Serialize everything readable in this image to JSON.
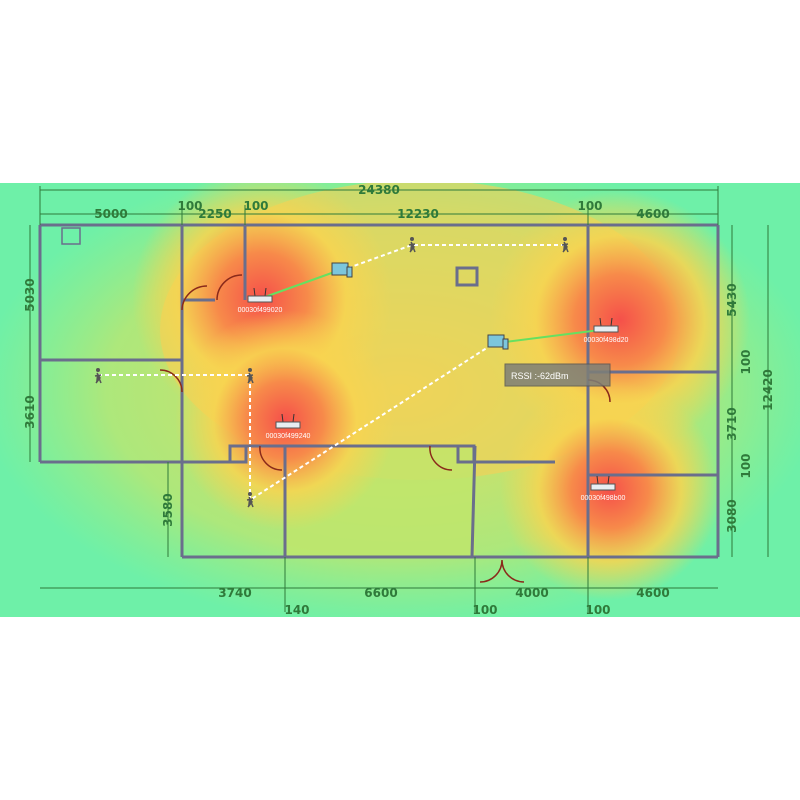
{
  "colors": {
    "background": "#6ef0a8",
    "hot": "#f5504a",
    "warm": "#f8d450",
    "wall": "#6a6e8c",
    "dimension": "#2f7a3a",
    "path": "#ffffff",
    "link": "#66e060"
  },
  "dimensions": {
    "top_total": "24380",
    "top": [
      "5000",
      "100",
      "2250",
      "100",
      "12230",
      "100",
      "4600"
    ],
    "left": [
      "5030",
      "3610",
      "3580"
    ],
    "right_total": "12420",
    "right": [
      "5430",
      "100",
      "3710",
      "100",
      "3080"
    ],
    "bottom": [
      "3740",
      "140",
      "6600",
      "100",
      "4000",
      "100",
      "4600"
    ]
  },
  "access_points": [
    {
      "label": "00030f499020"
    },
    {
      "label": "00030f498d20"
    },
    {
      "label": "00030f499240"
    },
    {
      "label": "00030f498b00"
    }
  ],
  "tooltip": {
    "label": "RSSI :",
    "value": "-62dBm"
  },
  "icons": {
    "person": "person-walking-icon",
    "router": "router-icon",
    "client": "laptop-phone-icon"
  }
}
